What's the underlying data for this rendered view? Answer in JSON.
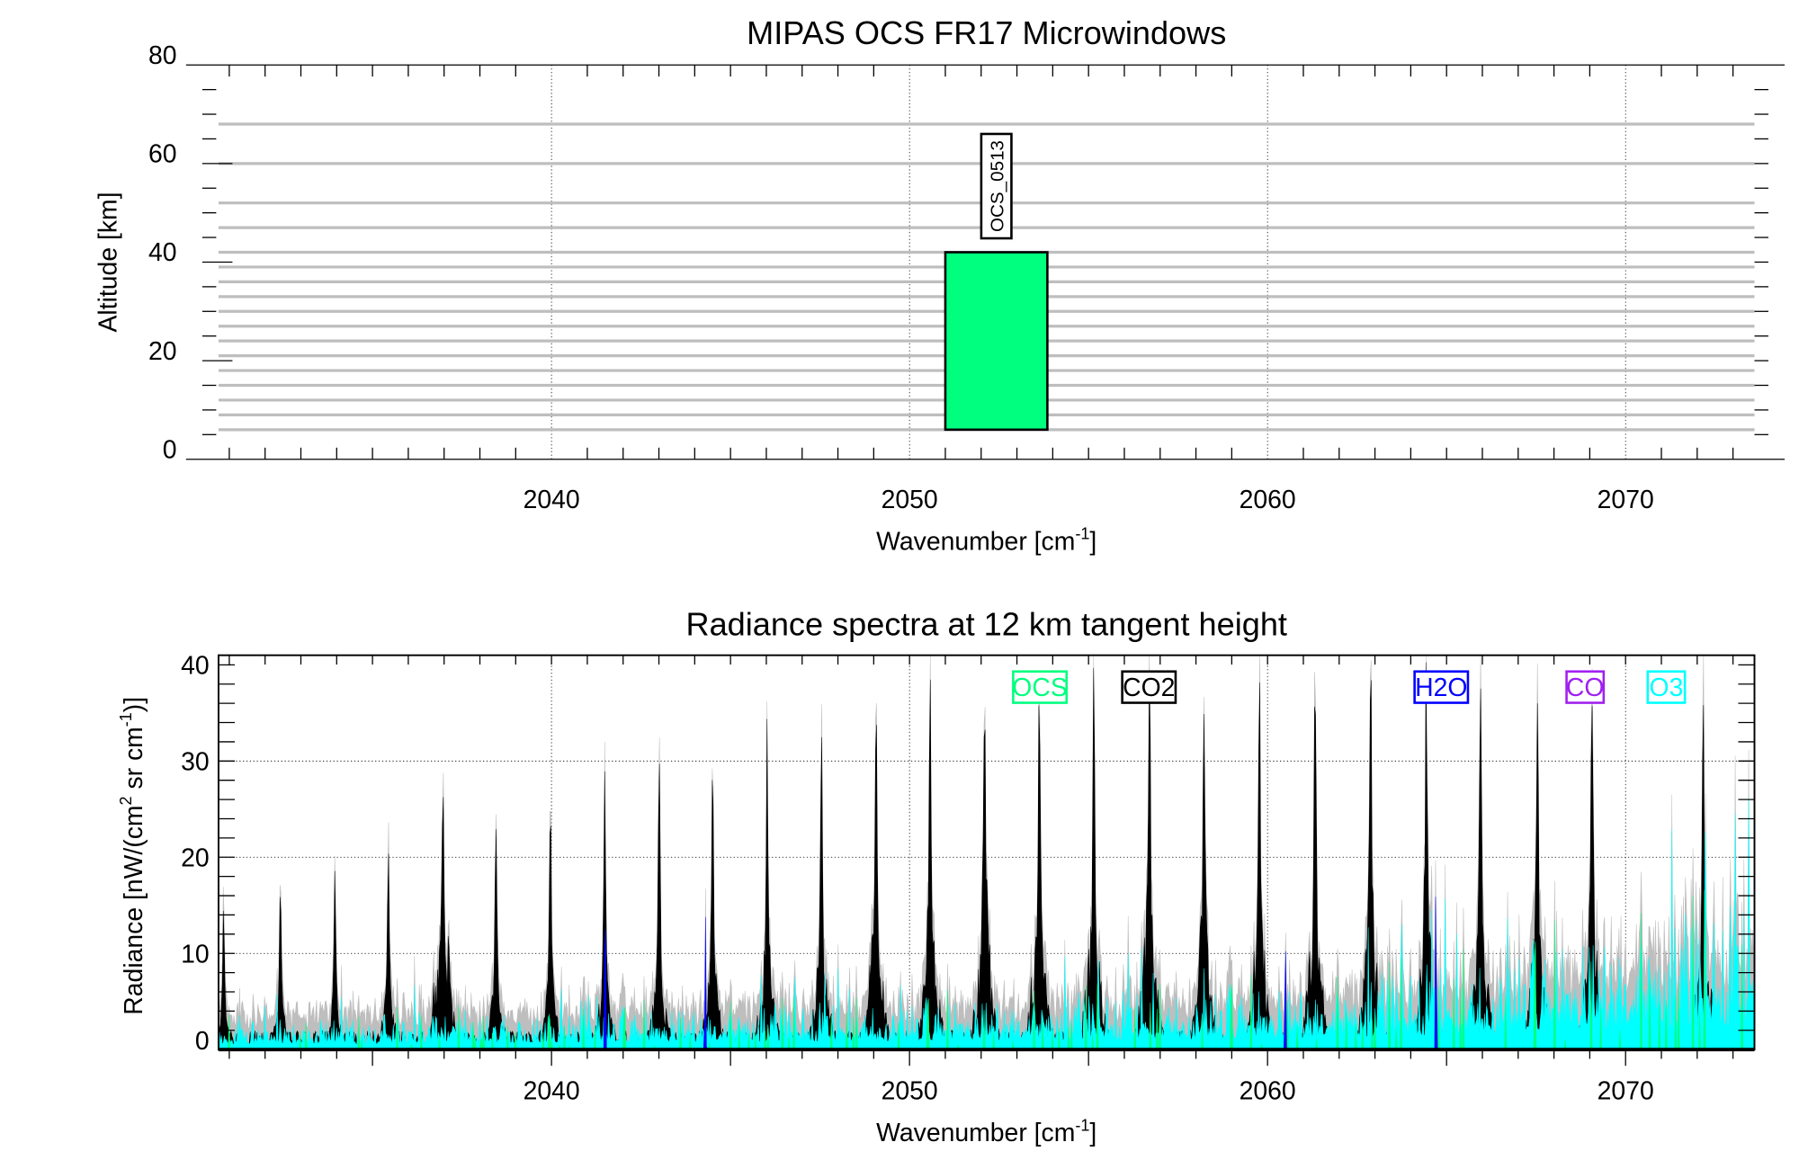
{
  "chart_data": [
    {
      "type": "bar",
      "title": "MIPAS OCS FR17 Microwindows",
      "xlabel": "Wavenumber [cm",
      "xlabel_sup": "-1",
      "xlabel_end": "]",
      "ylabel": "Altitude [km]",
      "xlim": [
        2030.7,
        2073.6
      ],
      "ylim": [
        0,
        80
      ],
      "xticks": [
        2040,
        2050,
        2060,
        2070
      ],
      "yticks": [
        0,
        20,
        40,
        60,
        80
      ],
      "tangent_heights_km": [
        6,
        9,
        12,
        15,
        18,
        21,
        24,
        27,
        30,
        33,
        36,
        39,
        42,
        47,
        52,
        60,
        68
      ],
      "microwindows": [
        {
          "label": "OCS_0513",
          "x_start": 2051.0,
          "x_end": 2053.85,
          "alt_bottom": 6,
          "alt_top": 42,
          "color": "#00ff7f"
        }
      ]
    },
    {
      "type": "area",
      "title": "Radiance spectra at 12 km tangent height",
      "xlabel": "Wavenumber [cm",
      "xlabel_sup": "-1",
      "xlabel_end": "]",
      "ylabel": "Radiance [nW/(cm",
      "ylabel_sup1": "2",
      "ylabel_mid": " sr cm",
      "ylabel_sup2": "-1",
      "ylabel_end": ")]",
      "xlim": [
        2030.7,
        2073.6
      ],
      "ylim": [
        0,
        41
      ],
      "xticks": [
        2040,
        2050,
        2060,
        2070
      ],
      "yticks": [
        0,
        10,
        20,
        30,
        40
      ],
      "grid": true,
      "legend_placement": "top",
      "legend": [
        {
          "name": "OCS",
          "color": "#00ff7f"
        },
        {
          "name": "CO2",
          "color": "#000000"
        },
        {
          "name": "H2O",
          "color": "#0000ff"
        },
        {
          "name": "CO",
          "color": "#a020f0"
        },
        {
          "name": "O3",
          "color": "#00ffff"
        }
      ],
      "total_color": "#bebebe",
      "co2_lines": {
        "wavenumber": [
          2030.84,
          2032.43,
          2033.95,
          2035.44,
          2036.96,
          2038.45,
          2039.97,
          2041.49,
          2043.01,
          2044.5,
          2046.02,
          2047.54,
          2049.06,
          2050.58,
          2052.1,
          2053.62,
          2055.15,
          2056.7,
          2058.22,
          2059.77,
          2061.33,
          2062.88,
          2064.43,
          2065.95,
          2067.54,
          2069.06,
          2072.17
        ],
        "peak": [
          12.5,
          16,
          17,
          18,
          19.5,
          21,
          23.5,
          23.5,
          27,
          28,
          27,
          28,
          30,
          31.5,
          32,
          33,
          31,
          33,
          31,
          32,
          33.5,
          34.5,
          33,
          30.5,
          30,
          31,
          30
        ],
        "core_level": [
          3,
          3,
          3,
          4,
          15,
          5,
          5,
          6,
          6,
          7,
          8,
          9,
          12,
          13,
          13,
          13,
          13,
          13,
          12,
          12,
          12,
          12,
          12,
          12,
          12,
          12,
          12
        ]
      },
      "h2o_lines": {
        "wavenumber": [
          2041.5,
          2044.3,
          2060.5,
          2064.7
        ],
        "peak": [
          21,
          15,
          13.5,
          21
        ]
      },
      "o3_baseline": {
        "wavenumber": [
          2031,
          2050,
          2062,
          2073.5
        ],
        "level": [
          2.5,
          4,
          5.5,
          12
        ]
      }
    }
  ]
}
